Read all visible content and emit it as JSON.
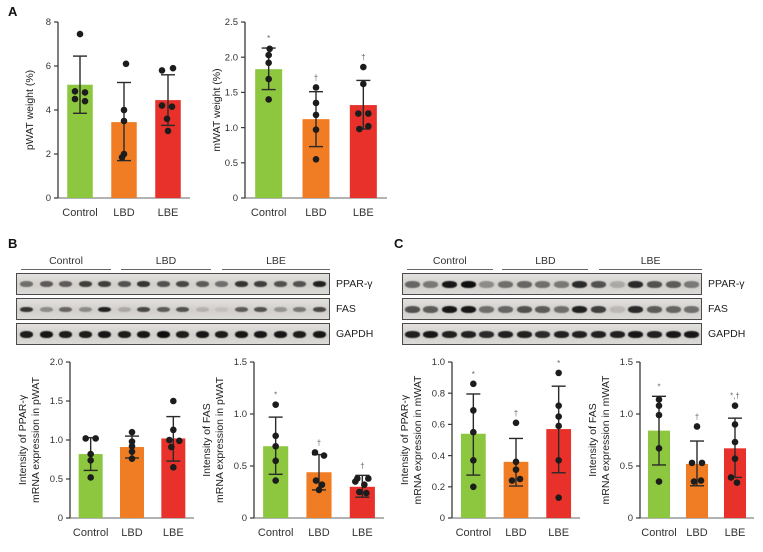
{
  "figure": {
    "panels": [
      {
        "label": "A"
      },
      {
        "label": "B"
      },
      {
        "label": "C"
      }
    ]
  },
  "colors": {
    "bars": [
      "#8dc63f",
      "#f07d23",
      "#e8312a"
    ],
    "dot": "#1c1c1c",
    "error": "#2a2a2a",
    "axis": "#3a3a3a",
    "baseline": "#9a9a9a",
    "tick_text": "#333333",
    "category_text": "#333333",
    "annotation": "#666666"
  },
  "blots": [
    {
      "panel": "B",
      "band_width": 13,
      "groups": [
        {
          "label": "Control",
          "lanes": 5
        },
        {
          "label": "LBD",
          "lanes": 5
        },
        {
          "label": "LBE",
          "lanes": 6
        }
      ],
      "rows": [
        {
          "label": "PPAR-γ",
          "band_height": 6,
          "intensities": [
            0.5,
            0.6,
            0.6,
            0.75,
            0.75,
            0.65,
            0.8,
            0.65,
            0.7,
            0.6,
            0.5,
            0.8,
            0.75,
            0.65,
            0.65,
            0.9
          ]
        },
        {
          "label": "FAS",
          "band_height": 5,
          "intensities": [
            0.8,
            0.35,
            0.55,
            0.35,
            0.9,
            0.2,
            0.7,
            0.6,
            0.65,
            0.15,
            0.08,
            0.6,
            0.65,
            0.3,
            0.45,
            0.7
          ]
        },
        {
          "label": "GAPDH",
          "band_height": 7,
          "intensities": [
            0.92,
            0.95,
            0.92,
            0.92,
            0.95,
            0.92,
            0.95,
            1.0,
            0.92,
            0.95,
            0.92,
            0.95,
            0.95,
            0.95,
            0.92,
            0.95
          ]
        }
      ]
    },
    {
      "panel": "C",
      "band_width": 15,
      "groups": [
        {
          "label": "Control",
          "lanes": 5
        },
        {
          "label": "LBD",
          "lanes": 5
        },
        {
          "label": "LBE",
          "lanes": 6
        }
      ],
      "rows": [
        {
          "label": "PPAR-γ",
          "band_height": 7,
          "intensities": [
            0.55,
            0.45,
            0.95,
            1.0,
            0.35,
            0.5,
            0.55,
            0.5,
            0.45,
            0.85,
            0.65,
            0.2,
            0.85,
            0.65,
            0.6,
            0.45
          ]
        },
        {
          "label": "FAS",
          "band_height": 7,
          "intensities": [
            0.65,
            0.6,
            0.95,
            0.95,
            0.5,
            0.55,
            0.65,
            0.6,
            0.5,
            0.9,
            0.75,
            0.12,
            0.85,
            0.6,
            0.55,
            0.5
          ]
        },
        {
          "label": "GAPDH",
          "band_height": 7,
          "intensities": [
            0.9,
            0.95,
            0.9,
            0.9,
            0.85,
            0.9,
            0.9,
            0.85,
            0.9,
            0.9,
            0.9,
            0.9,
            0.95,
            0.9,
            0.95,
            0.95
          ]
        }
      ]
    }
  ],
  "chart_data": [
    {
      "type": "bar",
      "panel": "A",
      "categories": [
        "Control",
        "LBD",
        "LBE"
      ],
      "values": [
        5.15,
        3.45,
        4.45
      ],
      "error_low": [
        3.85,
        1.7,
        3.3
      ],
      "error_high": [
        6.45,
        5.25,
        5.6
      ],
      "points": [
        [
          [
            7.45,
            0
          ],
          [
            4.85,
            -5
          ],
          [
            4.8,
            5
          ],
          [
            4.5,
            -5
          ],
          [
            4.4,
            5
          ]
        ],
        [
          [
            6.1,
            2
          ],
          [
            4.0,
            0
          ],
          [
            3.5,
            0
          ],
          [
            2.0,
            0
          ],
          [
            1.85,
            -2
          ]
        ],
        [
          [
            5.8,
            -6
          ],
          [
            5.9,
            5
          ],
          [
            4.2,
            -6
          ],
          [
            4.15,
            4
          ],
          [
            3.6,
            -1
          ],
          [
            3.05,
            0
          ]
        ]
      ],
      "annotations": [
        "",
        "",
        ""
      ],
      "ylabel": "pWAT weight (%)",
      "ylabel2": "",
      "ylim": [
        0,
        8
      ],
      "ytick_values": [
        0,
        2,
        4,
        6,
        8
      ],
      "ytick_labels": [
        "0",
        "2",
        "4",
        "6",
        "8"
      ]
    },
    {
      "type": "bar",
      "panel": "A",
      "categories": [
        "Control",
        "LBD",
        "LBE"
      ],
      "values": [
        1.83,
        1.12,
        1.32
      ],
      "error_low": [
        1.54,
        0.73,
        0.98
      ],
      "error_high": [
        2.13,
        1.51,
        1.67
      ],
      "points": [
        [
          [
            2.12,
            1
          ],
          [
            2.03,
            0
          ],
          [
            1.92,
            0
          ],
          [
            1.69,
            0
          ],
          [
            1.4,
            0
          ]
        ],
        [
          [
            1.57,
            0
          ],
          [
            1.35,
            0
          ],
          [
            1.18,
            0
          ],
          [
            0.97,
            0
          ],
          [
            0.55,
            0
          ]
        ],
        [
          [
            1.86,
            0
          ],
          [
            1.62,
            0
          ],
          [
            1.2,
            -5
          ],
          [
            1.2,
            5
          ],
          [
            0.98,
            -4
          ],
          [
            1.02,
            5
          ]
        ]
      ],
      "annotations": [
        "*",
        "†",
        "†"
      ],
      "ylabel": "mWAT weight (%)",
      "ylabel2": "",
      "ylim": [
        0,
        2.5
      ],
      "ytick_values": [
        0,
        0.5,
        1.0,
        1.5,
        2.0,
        2.5
      ],
      "ytick_labels": [
        "0",
        "0.5",
        "1.0",
        "1.5",
        "2.0",
        "2.5"
      ]
    },
    {
      "type": "bar",
      "panel": "B",
      "categories": [
        "Control",
        "LBD",
        "LBE"
      ],
      "values": [
        0.82,
        0.91,
        1.02
      ],
      "error_low": [
        0.61,
        0.77,
        0.73
      ],
      "error_high": [
        1.03,
        1.05,
        1.3
      ],
      "points": [
        [
          [
            1.02,
            -5
          ],
          [
            1.02,
            5
          ],
          [
            0.82,
            0
          ],
          [
            0.74,
            0
          ],
          [
            0.52,
            0
          ]
        ],
        [
          [
            1.1,
            0
          ],
          [
            0.98,
            0
          ],
          [
            0.92,
            0
          ],
          [
            0.85,
            0
          ],
          [
            0.76,
            0
          ]
        ],
        [
          [
            1.5,
            0
          ],
          [
            1.13,
            0
          ],
          [
            1.0,
            -4
          ],
          [
            0.99,
            6
          ],
          [
            0.91,
            -2
          ],
          [
            0.65,
            0
          ]
        ]
      ],
      "annotations": [
        "",
        "",
        ""
      ],
      "ylabel": "Intensity of PPAR-γ",
      "ylabel2": "mRNA expression in pWAT",
      "ylim": [
        0,
        2.0
      ],
      "ytick_values": [
        0,
        0.5,
        1.0,
        1.5,
        2.0
      ],
      "ytick_labels": [
        "0",
        "0.5",
        "1.0",
        "1.5",
        "2.0"
      ]
    },
    {
      "type": "bar",
      "panel": "B",
      "categories": [
        "Control",
        "LBD",
        "LBE"
      ],
      "values": [
        0.69,
        0.44,
        0.3
      ],
      "error_low": [
        0.42,
        0.27,
        0.2
      ],
      "error_high": [
        0.97,
        0.61,
        0.41
      ],
      "points": [
        [
          [
            1.09,
            0
          ],
          [
            0.79,
            0
          ],
          [
            0.69,
            0
          ],
          [
            0.55,
            0
          ],
          [
            0.36,
            0
          ]
        ],
        [
          [
            0.63,
            -4
          ],
          [
            0.6,
            5
          ],
          [
            0.36,
            -3
          ],
          [
            0.32,
            3
          ],
          [
            0.27,
            0
          ]
        ],
        [
          [
            0.38,
            -5
          ],
          [
            0.38,
            6
          ],
          [
            0.35,
            -7
          ],
          [
            0.32,
            2
          ],
          [
            0.25,
            -3
          ],
          [
            0.24,
            4
          ]
        ]
      ],
      "annotations": [
        "*",
        "†",
        "†"
      ],
      "ylabel": "Intensity of FAS",
      "ylabel2": "mRNA expression in pWAT",
      "ylim": [
        0,
        1.5
      ],
      "ytick_values": [
        0,
        0.5,
        1.0,
        1.5
      ],
      "ytick_labels": [
        "0",
        "0.5",
        "1.0",
        "1.5"
      ]
    },
    {
      "type": "bar",
      "panel": "C",
      "categories": [
        "Control",
        "LBD",
        "LBE"
      ],
      "values": [
        0.54,
        0.36,
        0.57
      ],
      "error_low": [
        0.275,
        0.205,
        0.29
      ],
      "error_high": [
        0.795,
        0.51,
        0.845
      ],
      "points": [
        [
          [
            0.86,
            0
          ],
          [
            0.69,
            0
          ],
          [
            0.55,
            0
          ],
          [
            0.37,
            0
          ],
          [
            0.2,
            0
          ]
        ],
        [
          [
            0.61,
            0
          ],
          [
            0.36,
            0
          ],
          [
            0.31,
            0
          ],
          [
            0.24,
            -4
          ],
          [
            0.25,
            4
          ]
        ],
        [
          [
            0.93,
            0
          ],
          [
            0.72,
            0
          ],
          [
            0.65,
            0
          ],
          [
            0.59,
            0
          ],
          [
            0.37,
            0
          ],
          [
            0.13,
            0
          ]
        ]
      ],
      "annotations": [
        "*",
        "†",
        "*"
      ],
      "ylabel": "Intensity of PPAR-γ",
      "ylabel2": "mRNA expression in mWAT",
      "ylim": [
        0,
        1.0
      ],
      "ytick_values": [
        0,
        0.2,
        0.4,
        0.6,
        0.8,
        1.0
      ],
      "ytick_labels": [
        "0",
        "0.2",
        "0.4",
        "0.6",
        "0.8",
        "1.0"
      ]
    },
    {
      "type": "bar",
      "panel": "C",
      "categories": [
        "Control",
        "LBD",
        "LBE"
      ],
      "values": [
        0.84,
        0.52,
        0.67
      ],
      "error_low": [
        0.51,
        0.31,
        0.39
      ],
      "error_high": [
        1.17,
        0.74,
        0.96
      ],
      "points": [
        [
          [
            1.14,
            0
          ],
          [
            1.08,
            0
          ],
          [
            0.99,
            0
          ],
          [
            0.67,
            0
          ],
          [
            0.35,
            0
          ]
        ],
        [
          [
            0.88,
            0
          ],
          [
            0.53,
            -5
          ],
          [
            0.53,
            5
          ],
          [
            0.35,
            -3
          ],
          [
            0.36,
            4
          ]
        ],
        [
          [
            1.08,
            0
          ],
          [
            0.9,
            0
          ],
          [
            0.73,
            0
          ],
          [
            0.57,
            0
          ],
          [
            0.39,
            -4
          ],
          [
            0.34,
            2
          ]
        ]
      ],
      "annotations": [
        "*",
        "†",
        "*,†"
      ],
      "ylabel": "Intensity of FAS",
      "ylabel2": "mRNA expression in mWAT",
      "ylim": [
        0,
        1.5
      ],
      "ytick_values": [
        0,
        0.5,
        1.0,
        1.5
      ],
      "ytick_labels": [
        "0",
        "0.5",
        "1.0",
        "1.5"
      ]
    }
  ]
}
